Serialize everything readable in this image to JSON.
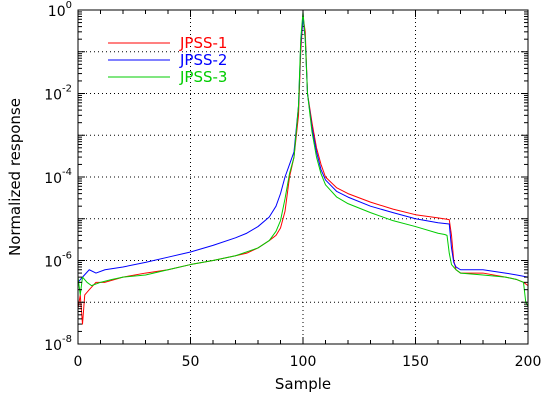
{
  "chart_data": {
    "type": "line",
    "title": "",
    "xlabel": "Sample",
    "ylabel": "Normalized response",
    "xlim": [
      0,
      200
    ],
    "ylim": [
      1e-08,
      1
    ],
    "yscale": "log",
    "grid": true,
    "grid_style": "dotted",
    "legend_position": "top-left",
    "x_ticks": [
      0,
      50,
      100,
      150,
      200
    ],
    "x_tick_labels": [
      "0",
      "50",
      "100",
      "150",
      "200"
    ],
    "y_ticks": [
      1e-08,
      1e-06,
      0.0001,
      0.01,
      1
    ],
    "y_tick_labels": [
      {
        "base": "10",
        "exp": "-8"
      },
      {
        "base": "10",
        "exp": "-6"
      },
      {
        "base": "10",
        "exp": "-4"
      },
      {
        "base": "10",
        "exp": "-2"
      },
      {
        "base": "10",
        "exp": "0"
      }
    ],
    "series": [
      {
        "name": "JPSS-1",
        "color": "#ff0000",
        "x": [
          0,
          1,
          2,
          3,
          5,
          8,
          12,
          20,
          30,
          40,
          50,
          60,
          70,
          75,
          80,
          85,
          88,
          90,
          92,
          94,
          96,
          98,
          99,
          100,
          101,
          102,
          104,
          106,
          108,
          110,
          115,
          120,
          130,
          140,
          150,
          160,
          165,
          166,
          167,
          168,
          170,
          180,
          190,
          195,
          198,
          200
        ],
        "y": [
          7e-08,
          1.5e-07,
          3e-08,
          1.5e-07,
          2e-07,
          3e-07,
          3e-07,
          4e-07,
          5e-07,
          6e-07,
          8e-07,
          1e-06,
          1.3e-06,
          1.5e-06,
          2e-06,
          3e-06,
          4e-06,
          6e-06,
          1.5e-05,
          0.0001,
          0.0003,
          0.003,
          0.1,
          0.7,
          0.3,
          0.01,
          0.002,
          0.0005,
          0.0002,
          0.0001,
          5.5e-05,
          4e-05,
          2.5e-05,
          1.7e-05,
          1.25e-05,
          1.05e-05,
          9.5e-06,
          4e-06,
          1e-06,
          6e-07,
          5e-07,
          5e-07,
          4e-07,
          3.5e-07,
          3e-07,
          2.5e-07
        ]
      },
      {
        "name": "JPSS-2",
        "color": "#0000ff",
        "x": [
          0,
          2,
          5,
          8,
          12,
          20,
          30,
          40,
          50,
          60,
          70,
          75,
          80,
          85,
          88,
          90,
          92,
          94,
          96,
          98,
          99,
          100,
          101,
          102,
          104,
          106,
          108,
          110,
          115,
          120,
          130,
          140,
          150,
          160,
          165,
          166,
          167,
          168,
          170,
          180,
          190,
          195,
          200
        ],
        "y": [
          3e-07,
          4e-07,
          6e-07,
          5e-07,
          6e-07,
          7e-07,
          9e-07,
          1.2e-06,
          1.6e-06,
          2.3e-06,
          3.5e-06,
          4.5e-06,
          6.5e-06,
          1.1e-05,
          2e-05,
          4e-05,
          0.0001,
          0.0002,
          0.0004,
          0.005,
          0.15,
          0.65,
          0.2,
          0.01,
          0.0015,
          0.0004,
          0.00015,
          8.5e-05,
          4.5e-05,
          3.3e-05,
          2e-05,
          1.4e-05,
          1e-05,
          8e-06,
          7.5e-06,
          2e-06,
          9e-07,
          7e-07,
          6e-07,
          6e-07,
          5e-07,
          4.5e-07,
          4e-07
        ]
      },
      {
        "name": "JPSS-3",
        "color": "#00cc00",
        "x": [
          0,
          1,
          2,
          4,
          6,
          10,
          15,
          20,
          30,
          40,
          50,
          60,
          70,
          80,
          85,
          88,
          90,
          92,
          94,
          96,
          98,
          99,
          100,
          101,
          102,
          104,
          106,
          108,
          110,
          115,
          120,
          130,
          140,
          150,
          160,
          163,
          164,
          165,
          166,
          168,
          170,
          180,
          190,
          195,
          198,
          199,
          200
        ],
        "y": [
          4e-07,
          1.5e-07,
          4e-07,
          3e-07,
          2.5e-07,
          3e-07,
          3.5e-07,
          4e-07,
          4.5e-07,
          6e-07,
          8e-07,
          1e-06,
          1.3e-06,
          2e-06,
          3e-06,
          5e-06,
          9e-06,
          3e-05,
          0.00012,
          0.0003,
          0.005,
          0.2,
          0.9,
          0.2,
          0.01,
          0.0012,
          0.0003,
          0.00012,
          6.5e-05,
          3.3e-05,
          2.3e-05,
          1.4e-05,
          9e-06,
          6.5e-06,
          4.5e-06,
          4.2e-06,
          4e-06,
          1.5e-06,
          8e-07,
          6e-07,
          5e-07,
          4.5e-07,
          4e-07,
          3.5e-07,
          3e-07,
          1e-07,
          8e-08
        ]
      }
    ]
  }
}
